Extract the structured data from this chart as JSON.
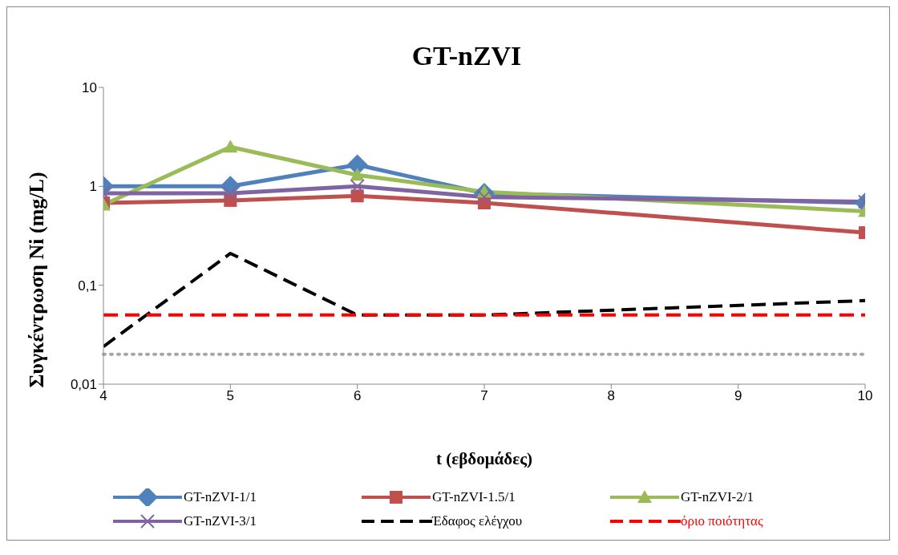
{
  "chart_data": {
    "type": "line",
    "title": "GT-nZVI",
    "xlabel": "t (εβδομάδες)",
    "ylabel": "Συγκέντρωση Ni (mg/L)",
    "x": [
      4,
      5,
      6,
      7,
      10
    ],
    "series": [
      {
        "name": "GT-nZVI-1/1",
        "color": "#4f81bd",
        "values": [
          1.0,
          1.0,
          1.65,
          0.85,
          0.68
        ],
        "marker": "diamond",
        "line_style": "solid"
      },
      {
        "name": "GT-nZVI-1.5/1",
        "color": "#c0504d",
        "values": [
          0.68,
          0.72,
          0.8,
          0.68,
          0.34
        ],
        "marker": "square",
        "line_style": "solid"
      },
      {
        "name": "GT-nZVI-2/1",
        "color": "#9bbb59",
        "values": [
          0.65,
          2.5,
          1.3,
          0.88,
          0.56
        ],
        "marker": "triangle",
        "line_style": "solid"
      },
      {
        "name": "GT-nZVI-3/1",
        "color": "#8064a2",
        "values": [
          0.85,
          0.85,
          1.0,
          0.78,
          0.7
        ],
        "marker": "cross",
        "line_style": "solid"
      },
      {
        "name": "Έδαφος ελέγχου",
        "color": "#000000",
        "values": [
          0.024,
          0.21,
          0.05,
          0.05,
          0.07
        ],
        "marker": "none",
        "line_style": "dashed"
      },
      {
        "name": "όριο ποιότητας",
        "color": "#ff0000",
        "values": [
          0.05,
          0.05,
          0.05,
          0.05,
          0.05
        ],
        "marker": "none",
        "line_style": "dashed"
      }
    ],
    "log": "y",
    "xlim": [
      4,
      10
    ],
    "xticks": [
      4,
      5,
      6,
      7,
      8,
      9,
      10
    ],
    "ylim": [
      0.01,
      10
    ],
    "yticks": [
      {
        "value": 0.01,
        "label": "0,01"
      },
      {
        "value": 0.1,
        "label": "0,1"
      },
      1,
      10
    ],
    "ref_lines": [
      {
        "axis": "y",
        "value": 0.02,
        "label": null,
        "color": "#a6a6a6",
        "line_style": "dotted"
      }
    ],
    "grid": false,
    "legend": "bottom"
  }
}
